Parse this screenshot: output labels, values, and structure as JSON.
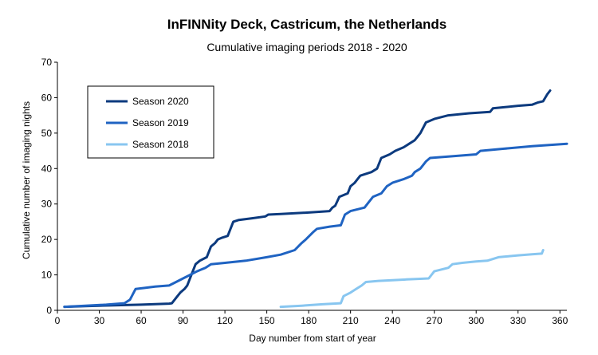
{
  "chart_data": {
    "type": "line",
    "title": "InFINNity Deck, Castricum, the Netherlands",
    "subtitle": "Cumulative imaging periods 2018 - 2020",
    "xlabel": "Day number from start of year",
    "ylabel": "Cumulative number of imaging nights",
    "xlim": [
      0,
      365
    ],
    "ylim": [
      0,
      70
    ],
    "x_ticks": [
      0,
      30,
      60,
      90,
      120,
      150,
      180,
      210,
      240,
      270,
      300,
      330,
      360
    ],
    "y_ticks": [
      0,
      10,
      20,
      30,
      40,
      50,
      60,
      70
    ],
    "grid": false,
    "legend_position": "top-left",
    "series": [
      {
        "name": "Season 2020",
        "color": "#0c3a7e",
        "points": [
          [
            5,
            1
          ],
          [
            20,
            1.2
          ],
          [
            40,
            1.4
          ],
          [
            60,
            1.6
          ],
          [
            80,
            1.9
          ],
          [
            82,
            2
          ],
          [
            85,
            3.5
          ],
          [
            88,
            5
          ],
          [
            91,
            6
          ],
          [
            93,
            7
          ],
          [
            95,
            9
          ],
          [
            97,
            11
          ],
          [
            99,
            13
          ],
          [
            102,
            14
          ],
          [
            107,
            15
          ],
          [
            110,
            18
          ],
          [
            113,
            19
          ],
          [
            115,
            20
          ],
          [
            118,
            20.5
          ],
          [
            122,
            21
          ],
          [
            126,
            25
          ],
          [
            130,
            25.5
          ],
          [
            140,
            26
          ],
          [
            149,
            26.5
          ],
          [
            151,
            27
          ],
          [
            160,
            27.2
          ],
          [
            180,
            27.6
          ],
          [
            195,
            28
          ],
          [
            197,
            29
          ],
          [
            199,
            29.5
          ],
          [
            202,
            32
          ],
          [
            208,
            33
          ],
          [
            210,
            35
          ],
          [
            213,
            36
          ],
          [
            215,
            37
          ],
          [
            217,
            38
          ],
          [
            225,
            39
          ],
          [
            229,
            40
          ],
          [
            232,
            43
          ],
          [
            238,
            44
          ],
          [
            242,
            45
          ],
          [
            248,
            46
          ],
          [
            252,
            47
          ],
          [
            256,
            48
          ],
          [
            260,
            50
          ],
          [
            264,
            53
          ],
          [
            270,
            54
          ],
          [
            280,
            55
          ],
          [
            295,
            55.6
          ],
          [
            310,
            56
          ],
          [
            312,
            57
          ],
          [
            320,
            57.3
          ],
          [
            330,
            57.7
          ],
          [
            340,
            58
          ],
          [
            344,
            58.6
          ],
          [
            348,
            59
          ],
          [
            351,
            61
          ],
          [
            353,
            62
          ]
        ]
      },
      {
        "name": "Season 2019",
        "color": "#1f63c2",
        "points": [
          [
            5,
            1
          ],
          [
            20,
            1.3
          ],
          [
            35,
            1.6
          ],
          [
            48,
            2
          ],
          [
            52,
            3
          ],
          [
            56,
            6
          ],
          [
            62,
            6.3
          ],
          [
            70,
            6.7
          ],
          [
            80,
            7
          ],
          [
            85,
            8
          ],
          [
            90,
            9
          ],
          [
            95,
            10
          ],
          [
            100,
            11
          ],
          [
            106,
            12
          ],
          [
            110,
            13
          ],
          [
            120,
            13.4
          ],
          [
            135,
            14
          ],
          [
            150,
            15
          ],
          [
            160,
            15.7
          ],
          [
            170,
            17
          ],
          [
            175,
            19
          ],
          [
            178,
            20
          ],
          [
            183,
            22
          ],
          [
            186,
            23
          ],
          [
            195,
            23.6
          ],
          [
            203,
            24
          ],
          [
            206,
            27
          ],
          [
            210,
            28
          ],
          [
            220,
            29
          ],
          [
            222,
            30
          ],
          [
            226,
            32
          ],
          [
            232,
            33
          ],
          [
            236,
            35
          ],
          [
            240,
            36
          ],
          [
            248,
            37
          ],
          [
            254,
            38
          ],
          [
            256,
            39
          ],
          [
            260,
            40
          ],
          [
            264,
            42
          ],
          [
            267,
            43
          ],
          [
            280,
            43.4
          ],
          [
            300,
            44
          ],
          [
            303,
            45
          ],
          [
            320,
            45.6
          ],
          [
            340,
            46.3
          ],
          [
            365,
            47
          ]
        ]
      },
      {
        "name": "Season 2018",
        "color": "#88c6f0",
        "points": [
          [
            160,
            1
          ],
          [
            175,
            1.3
          ],
          [
            190,
            1.7
          ],
          [
            203,
            2
          ],
          [
            205,
            4
          ],
          [
            210,
            5
          ],
          [
            214,
            6
          ],
          [
            218,
            7
          ],
          [
            221,
            8
          ],
          [
            230,
            8.3
          ],
          [
            240,
            8.5
          ],
          [
            250,
            8.7
          ],
          [
            260,
            8.9
          ],
          [
            266,
            9
          ],
          [
            270,
            11
          ],
          [
            280,
            12
          ],
          [
            283,
            13
          ],
          [
            290,
            13.4
          ],
          [
            300,
            13.8
          ],
          [
            308,
            14
          ],
          [
            316,
            15
          ],
          [
            330,
            15.5
          ],
          [
            340,
            15.8
          ],
          [
            347,
            16
          ],
          [
            348,
            17
          ]
        ]
      }
    ]
  }
}
